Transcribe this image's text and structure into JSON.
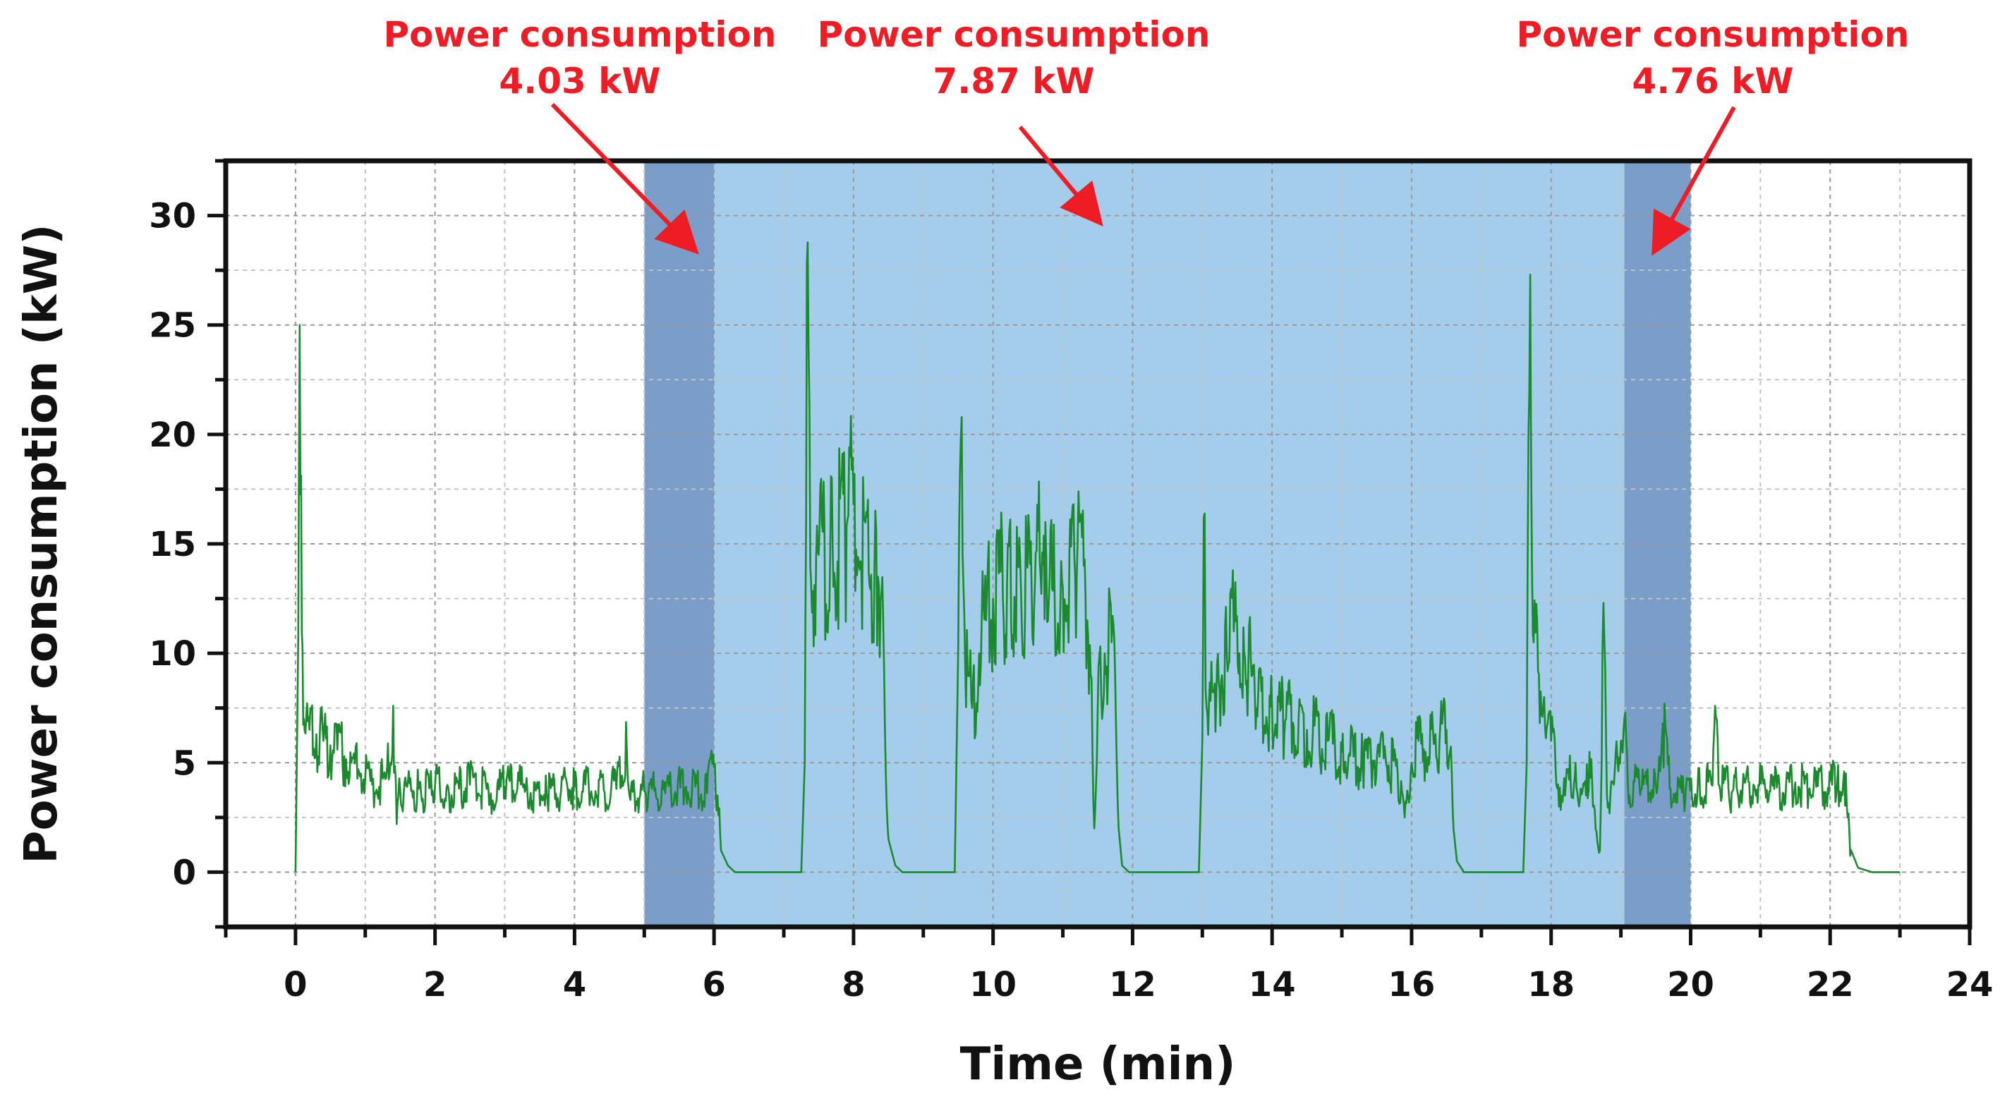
{
  "chart_data": {
    "type": "line",
    "title": "",
    "xlabel": "Time (min)",
    "ylabel": "Power consumption (kW)",
    "xlim": [
      -1,
      24
    ],
    "ylim": [
      -2.5,
      32.5
    ],
    "xticks": [
      0,
      2,
      4,
      6,
      8,
      10,
      12,
      14,
      16,
      18,
      20,
      22,
      24
    ],
    "yticks": [
      0,
      5,
      10,
      15,
      20,
      25,
      30
    ],
    "grid": true,
    "line_color": "#1b8a2e",
    "shaded_regions": [
      {
        "x_start": 5,
        "x_end": 6,
        "color": "#7a9ec8"
      },
      {
        "x_start": 6,
        "x_end": 19.05,
        "color": "#a3cdeb"
      },
      {
        "x_start": 19.05,
        "x_end": 20,
        "color": "#7a9ec8"
      }
    ],
    "annotations": [
      {
        "line1": "Power consumption",
        "line2": "4.03 kW",
        "arrow_to": [
          5.7,
          28.5
        ],
        "color": "#ee1c24"
      },
      {
        "line1": "Power consumption",
        "line2": "7.87 kW",
        "arrow_to": [
          11.5,
          29.8
        ],
        "color": "#ee1c24"
      },
      {
        "line1": "Power consumption",
        "line2": "4.76 kW",
        "arrow_to": [
          19.5,
          28.5
        ],
        "color": "#ee1c24"
      }
    ],
    "series": [
      {
        "name": "Power consumption",
        "points": [
          [
            0.0,
            0
          ],
          [
            0.03,
            8
          ],
          [
            0.06,
            25
          ],
          [
            0.09,
            11
          ],
          [
            0.12,
            7
          ],
          [
            0.2,
            6.5
          ],
          [
            0.3,
            6.3
          ],
          [
            0.4,
            6.0
          ],
          [
            0.5,
            5.8
          ],
          [
            0.6,
            5.6
          ],
          [
            0.7,
            5.3
          ],
          [
            0.8,
            5.0
          ],
          [
            0.9,
            4.7
          ],
          [
            1.0,
            4.3
          ],
          [
            1.1,
            4.0
          ],
          [
            1.2,
            3.9
          ],
          [
            1.3,
            4.3
          ],
          [
            1.4,
            7.6
          ],
          [
            1.45,
            2.2
          ],
          [
            1.5,
            3.8
          ],
          [
            1.6,
            3.9
          ],
          [
            1.8,
            3.6
          ],
          [
            2.0,
            3.9
          ],
          [
            2.2,
            3.6
          ],
          [
            2.5,
            4.0
          ],
          [
            2.8,
            3.6
          ],
          [
            3.0,
            3.9
          ],
          [
            3.3,
            3.8
          ],
          [
            3.6,
            3.6
          ],
          [
            4.0,
            3.9
          ],
          [
            4.3,
            3.7
          ],
          [
            4.6,
            3.8
          ],
          [
            4.75,
            5.5
          ],
          [
            4.8,
            3.3
          ],
          [
            5.0,
            3.7
          ],
          [
            5.3,
            3.6
          ],
          [
            5.6,
            3.9
          ],
          [
            5.9,
            3.6
          ],
          [
            6.0,
            4.8
          ],
          [
            6.05,
            3.5
          ],
          [
            6.1,
            1.0
          ],
          [
            6.2,
            0.3
          ],
          [
            6.3,
            0
          ],
          [
            7.0,
            0
          ],
          [
            7.25,
            0
          ],
          [
            7.3,
            5
          ],
          [
            7.33,
            27.8
          ],
          [
            7.38,
            14
          ],
          [
            7.5,
            14.5
          ],
          [
            7.7,
            14.8
          ],
          [
            7.9,
            15.8
          ],
          [
            8.0,
            16.8
          ],
          [
            8.1,
            14.2
          ],
          [
            8.3,
            14.0
          ],
          [
            8.35,
            13.5
          ],
          [
            8.4,
            12.8
          ],
          [
            8.45,
            6.5
          ],
          [
            8.5,
            1.5
          ],
          [
            8.6,
            0.3
          ],
          [
            8.7,
            0
          ],
          [
            9.45,
            0
          ],
          [
            9.5,
            10
          ],
          [
            9.55,
            20.8
          ],
          [
            9.6,
            9.5
          ],
          [
            9.7,
            7.5
          ],
          [
            9.8,
            10
          ],
          [
            9.9,
            11.5
          ],
          [
            10.0,
            12.5
          ],
          [
            10.2,
            13.2
          ],
          [
            10.4,
            13.0
          ],
          [
            10.6,
            13.2
          ],
          [
            10.75,
            16.0
          ],
          [
            10.8,
            12.5
          ],
          [
            11.0,
            13.0
          ],
          [
            11.2,
            13.5
          ],
          [
            11.3,
            14.0
          ],
          [
            11.35,
            11.5
          ],
          [
            11.4,
            9.0
          ],
          [
            11.45,
            2.0
          ],
          [
            11.5,
            7.5
          ],
          [
            11.6,
            10.0
          ],
          [
            11.7,
            10.5
          ],
          [
            11.75,
            9.0
          ],
          [
            11.8,
            2.0
          ],
          [
            11.85,
            0.3
          ],
          [
            11.95,
            0
          ],
          [
            12.95,
            0
          ],
          [
            13.0,
            6.0
          ],
          [
            13.02,
            16.2
          ],
          [
            13.06,
            7.5
          ],
          [
            13.2,
            8.0
          ],
          [
            13.35,
            10.0
          ],
          [
            13.45,
            11.0
          ],
          [
            13.6,
            10.0
          ],
          [
            13.8,
            8.0
          ],
          [
            14.0,
            7.5
          ],
          [
            14.2,
            7.0
          ],
          [
            14.5,
            6.5
          ],
          [
            14.8,
            6.0
          ],
          [
            15.0,
            5.5
          ],
          [
            15.3,
            5.0
          ],
          [
            15.6,
            5.2
          ],
          [
            15.8,
            4.5
          ],
          [
            15.9,
            2.5
          ],
          [
            16.0,
            5.0
          ],
          [
            16.1,
            6.0
          ],
          [
            16.2,
            5.5
          ],
          [
            16.4,
            6.0
          ],
          [
            16.5,
            6.5
          ],
          [
            16.55,
            5.5
          ],
          [
            16.6,
            2.0
          ],
          [
            16.65,
            0.5
          ],
          [
            16.75,
            0
          ],
          [
            17.6,
            0
          ],
          [
            17.65,
            5
          ],
          [
            17.7,
            27.3
          ],
          [
            17.75,
            10.5
          ],
          [
            17.9,
            8.0
          ],
          [
            18.0,
            6.0
          ],
          [
            18.1,
            4.0
          ],
          [
            18.2,
            3.5
          ],
          [
            18.35,
            5.0
          ],
          [
            18.4,
            3.0
          ],
          [
            18.5,
            3.5
          ],
          [
            18.55,
            5.5
          ],
          [
            18.6,
            3.0
          ],
          [
            18.7,
            1.0
          ],
          [
            18.75,
            12.3
          ],
          [
            18.8,
            3.5
          ],
          [
            18.9,
            4.0
          ],
          [
            19.0,
            6.0
          ],
          [
            19.05,
            7.0
          ],
          [
            19.1,
            4.0
          ],
          [
            19.3,
            3.8
          ],
          [
            19.5,
            4.0
          ],
          [
            19.6,
            6.8
          ],
          [
            19.7,
            3.8
          ],
          [
            19.9,
            3.5
          ],
          [
            20.1,
            3.9
          ],
          [
            20.3,
            4.0
          ],
          [
            20.35,
            7.6
          ],
          [
            20.4,
            4.0
          ],
          [
            20.6,
            3.7
          ],
          [
            20.9,
            4.0
          ],
          [
            21.2,
            3.8
          ],
          [
            21.5,
            4.1
          ],
          [
            21.8,
            3.9
          ],
          [
            22.1,
            4.0
          ],
          [
            22.2,
            4.6
          ],
          [
            22.25,
            2.5
          ],
          [
            22.3,
            1.0
          ],
          [
            22.4,
            0.2
          ],
          [
            22.6,
            0
          ],
          [
            23.0,
            0
          ]
        ]
      }
    ]
  }
}
